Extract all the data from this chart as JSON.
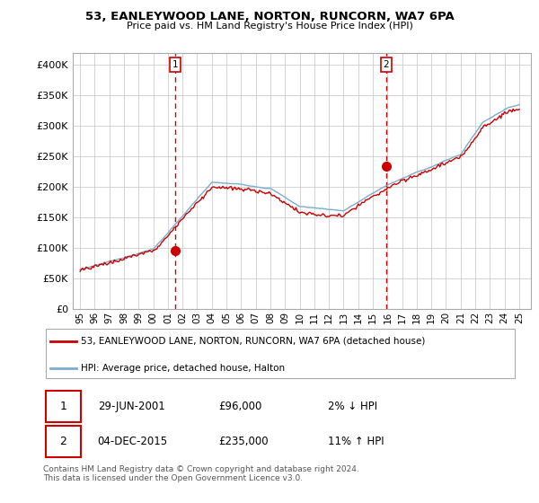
{
  "title": "53, EANLEYWOOD LANE, NORTON, RUNCORN, WA7 6PA",
  "subtitle": "Price paid vs. HM Land Registry's House Price Index (HPI)",
  "legend_line1": "53, EANLEYWOOD LANE, NORTON, RUNCORN, WA7 6PA (detached house)",
  "legend_line2": "HPI: Average price, detached house, Halton",
  "transaction1_date": "29-JUN-2001",
  "transaction1_price": "£96,000",
  "transaction1_hpi": "2% ↓ HPI",
  "transaction2_date": "04-DEC-2015",
  "transaction2_price": "£235,000",
  "transaction2_hpi": "11% ↑ HPI",
  "footer": "Contains HM Land Registry data © Crown copyright and database right 2024.\nThis data is licensed under the Open Government Licence v3.0.",
  "red_color": "#cc0000",
  "blue_color": "#7aadcf",
  "vline_color": "#cc0000",
  "grid_color": "#cccccc",
  "background_color": "#ffffff",
  "ylim": [
    0,
    420000
  ],
  "yticks": [
    0,
    50000,
    100000,
    150000,
    200000,
    250000,
    300000,
    350000,
    400000
  ],
  "transaction1_x": 2001.5,
  "transaction2_x": 2015.92,
  "xlim_left": 1994.5,
  "xlim_right": 2025.8
}
